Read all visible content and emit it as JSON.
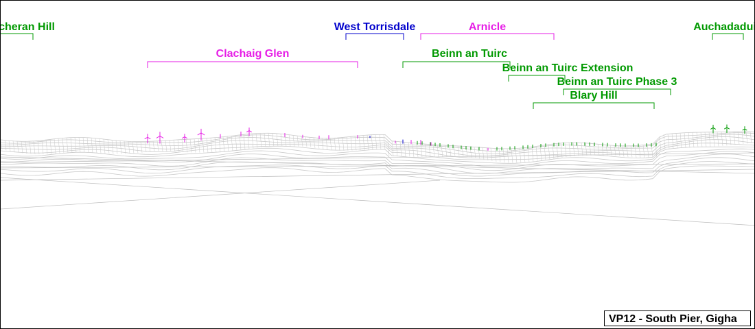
{
  "viewpoint": "VP12 - South Pier, Gigha",
  "colors": {
    "green": "#009900",
    "magenta": "#e61ee6",
    "blue": "#0000cc",
    "wire": "#c8c8c8"
  },
  "farms": [
    {
      "id": "ucheran-hill",
      "name": "cheran Hill",
      "color": "green"
    },
    {
      "id": "west-torrisdale",
      "name": "West Torrisdale",
      "color": "blue"
    },
    {
      "id": "arnicle",
      "name": "Arnicle",
      "color": "magenta"
    },
    {
      "id": "auchadaduie",
      "name": "Auchadadui",
      "color": "green"
    },
    {
      "id": "clachaig-glen",
      "name": "Clachaig Glen",
      "color": "magenta"
    },
    {
      "id": "beinn-an-tuirc",
      "name": "Beinn an Tuirc",
      "color": "green"
    },
    {
      "id": "beinn-an-tuirc-extension",
      "name": "Beinn an Tuirc Extension",
      "color": "green"
    },
    {
      "id": "beinn-an-tuirc-phase-3",
      "name": "Beinn an Tuirc Phase 3",
      "color": "green"
    },
    {
      "id": "blary-hill",
      "name": "Blary Hill",
      "color": "green"
    }
  ]
}
